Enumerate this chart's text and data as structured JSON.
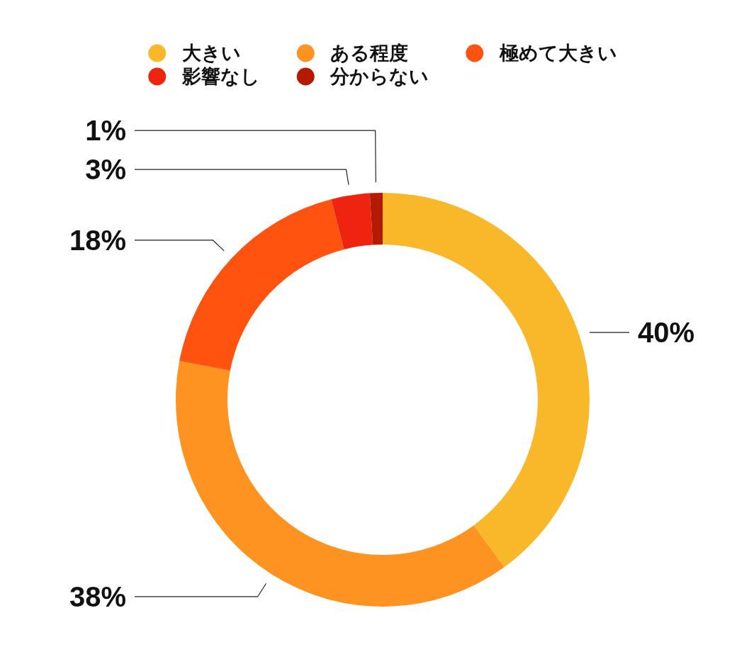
{
  "chart_data": {
    "type": "donut",
    "categories": [
      "大きい",
      "ある程度",
      "極めて大きい",
      "影響なし",
      "分からない"
    ],
    "values": [
      40,
      38,
      18,
      3,
      1
    ],
    "colors": [
      "#f8b829",
      "#ff9321",
      "#ff530f",
      "#ee2410",
      "#b31a00"
    ],
    "value_labels": [
      "40%",
      "38%",
      "18%",
      "3%",
      "1%"
    ],
    "legend": "top"
  }
}
